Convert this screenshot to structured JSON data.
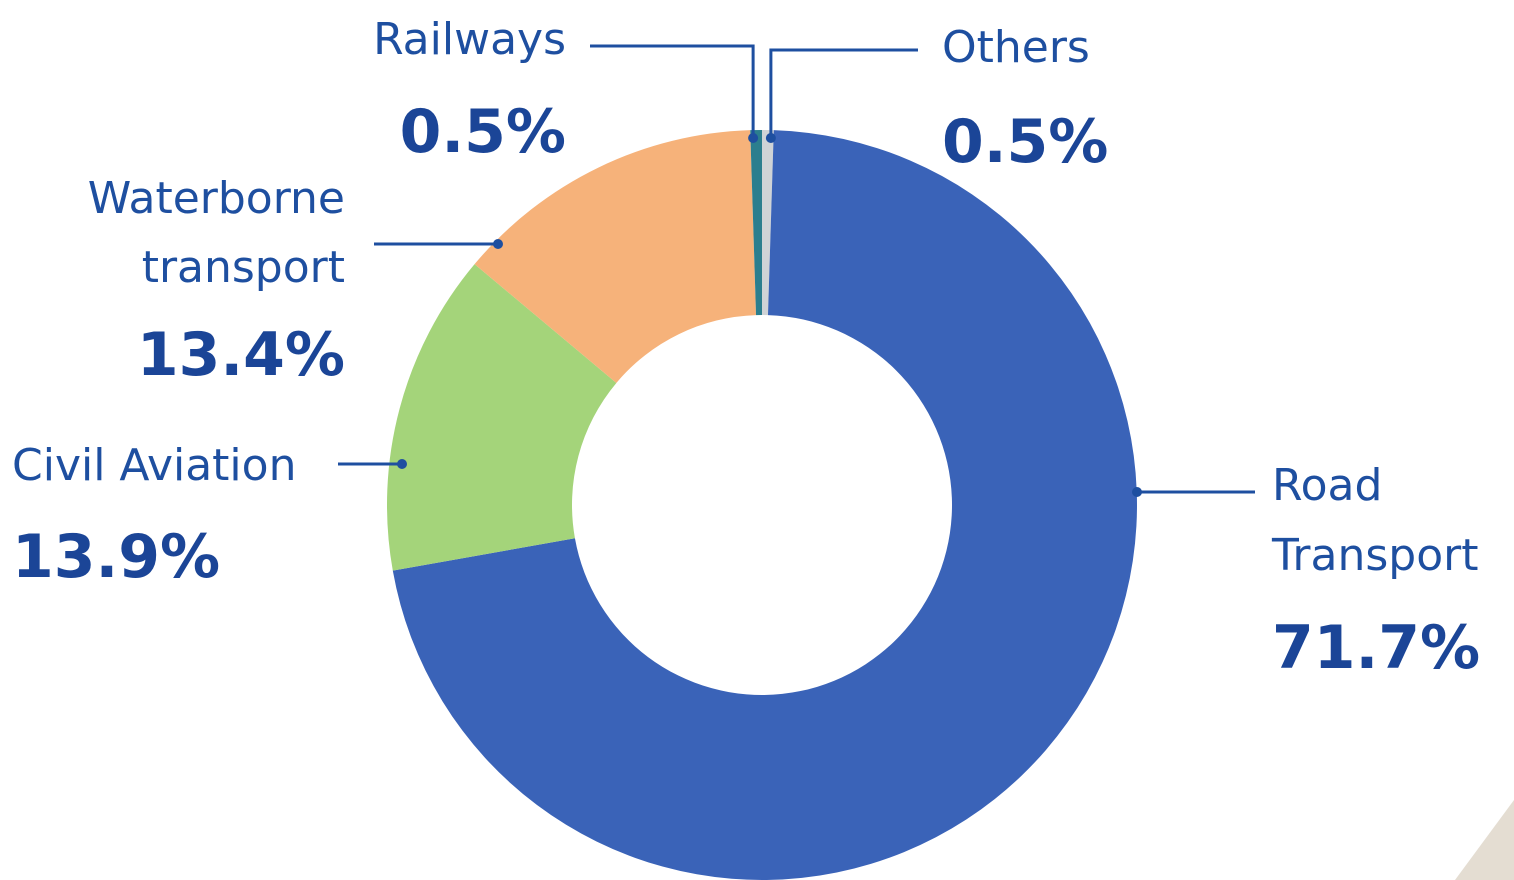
{
  "chart_data": {
    "type": "pie",
    "title": "",
    "categories": [
      "Others",
      "Road Transport",
      "Civil Aviation",
      "Waterborne transport",
      "Railways"
    ],
    "values": [
      0.5,
      71.7,
      13.9,
      13.4,
      0.5
    ],
    "value_labels": [
      "0.5%",
      "71.7%",
      "13.9%",
      "13.4%",
      "0.5%"
    ],
    "label_lines": [
      [
        "Others"
      ],
      [
        "Road",
        "Transport"
      ],
      [
        "Civil Aviation"
      ],
      [
        "Waterborne",
        "transport"
      ],
      [
        "Railways"
      ]
    ],
    "colors": [
      "#cfd3d6",
      "#3a63b8",
      "#a4d47a",
      "#f6b27a",
      "#2b7e8e"
    ],
    "donut": true,
    "legend": "none"
  },
  "decoration": {
    "corner_color": "#e4ddd2"
  }
}
